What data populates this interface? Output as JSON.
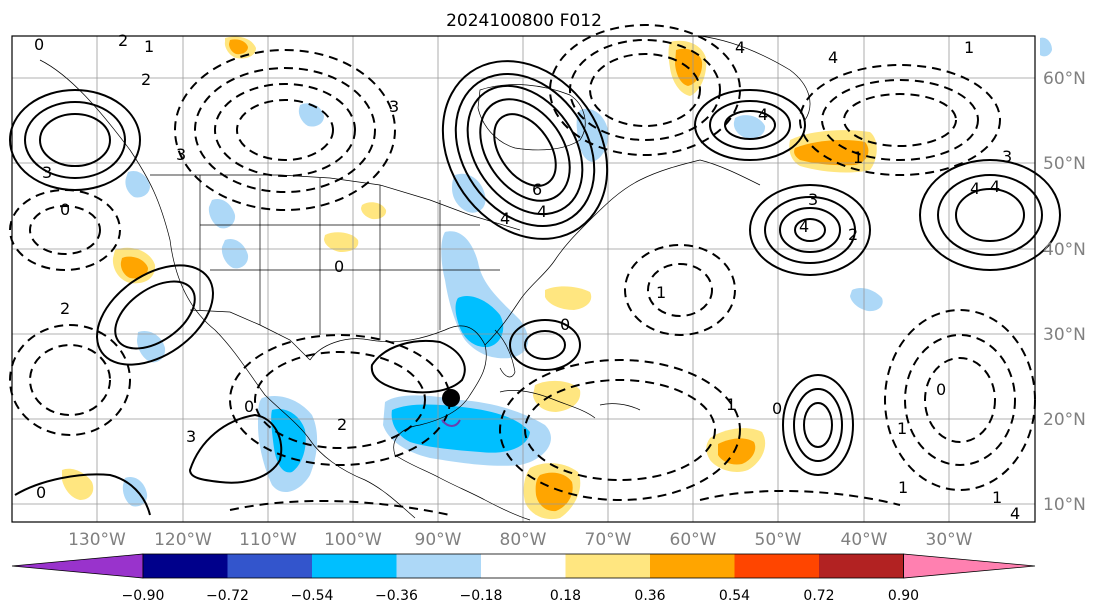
{
  "title": "2024100800 F012",
  "lon_ticks": [
    "130°W",
    "120°W",
    "110°W",
    "100°W",
    "90°W",
    "80°W",
    "70°W",
    "60°W",
    "50°W",
    "40°W",
    "30°W"
  ],
  "lat_ticks": [
    "60°N",
    "50°N",
    "40°N",
    "30°N",
    "20°N",
    "10°N"
  ],
  "colorbar": {
    "tick_labels": [
      "−0.90",
      "−0.72",
      "−0.54",
      "−0.36",
      "−0.18",
      "0.18",
      "0.36",
      "0.54",
      "0.72",
      "0.90"
    ],
    "colors": [
      "#9933cc",
      "#00008b",
      "#3355cc",
      "#00bfff",
      "#add8f7",
      "#ffffff",
      "#ffe680",
      "#ffa500",
      "#ff4500",
      "#b22222",
      "#ff80b0"
    ]
  },
  "contour_labels": [
    "0",
    "2",
    "1",
    "2",
    "6",
    "4",
    "3",
    "4",
    "0",
    "2",
    "4",
    "1",
    "4",
    "3",
    "2",
    "4",
    "0",
    "4",
    "1",
    "0",
    "4",
    "1",
    "3",
    "1",
    "0",
    "4",
    "1",
    "2",
    "0",
    "3",
    "3",
    "0",
    "1",
    "3",
    "1",
    "0",
    "4"
  ],
  "marker": {
    "name": "storm-center",
    "color": "#000000"
  },
  "colors": {
    "positive_contour": "#000000",
    "negative_contour": "#000000",
    "gridlines": "#999999"
  }
}
